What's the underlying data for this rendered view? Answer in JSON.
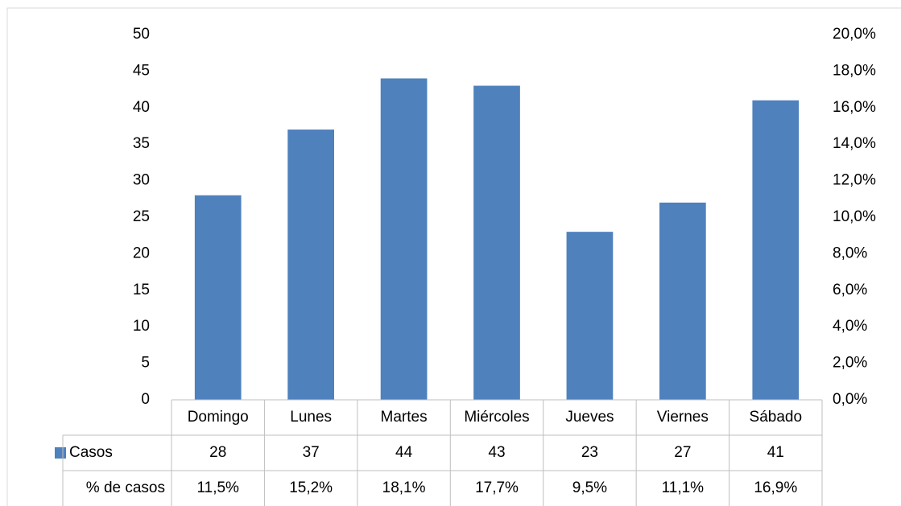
{
  "chart_data": {
    "type": "bar",
    "categories": [
      "Domingo",
      "Lunes",
      "Martes",
      "Miércoles",
      "Jueves",
      "Viernes",
      "Sábado"
    ],
    "series": [
      {
        "name": "Casos",
        "color": "#4f81bd",
        "values": [
          28,
          37,
          44,
          43,
          23,
          27,
          41
        ]
      },
      {
        "name": "% de casos",
        "axis": "y2",
        "values": [
          11.5,
          15.2,
          18.1,
          17.7,
          9.5,
          11.1,
          16.9
        ],
        "value_labels": [
          "11,5%",
          "15,2%",
          "18,1%",
          "17,7%",
          "9,5%",
          "11,1%",
          "16,9%"
        ]
      }
    ],
    "ylim": [
      0,
      50
    ],
    "yticks": [
      0,
      5,
      10,
      15,
      20,
      25,
      30,
      35,
      40,
      45,
      50
    ],
    "y2lim": [
      0,
      20
    ],
    "y2ticks": [
      {
        "value": 0,
        "label": "0,0%"
      },
      {
        "value": 2,
        "label": "2,0%"
      },
      {
        "value": 4,
        "label": "4,0%"
      },
      {
        "value": 6,
        "label": "6,0%"
      },
      {
        "value": 8,
        "label": "8,0%"
      },
      {
        "value": 10,
        "label": "10,0%"
      },
      {
        "value": 12,
        "label": "12,0%"
      },
      {
        "value": 14,
        "label": "14,0%"
      },
      {
        "value": 16,
        "label": "16,0%"
      },
      {
        "value": 18,
        "label": "18,0%"
      },
      {
        "value": 20,
        "label": "20,0%"
      }
    ]
  }
}
